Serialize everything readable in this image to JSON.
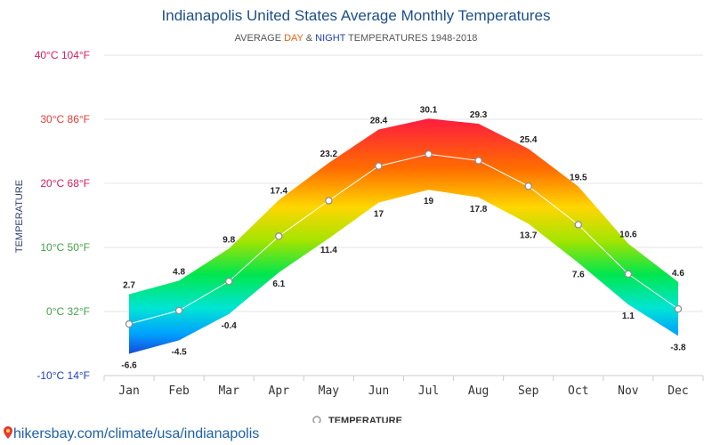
{
  "header": {
    "title": "Indianapolis United States Average Monthly Temperatures",
    "subtitle_prefix": "AVERAGE ",
    "subtitle_day": "DAY",
    "subtitle_amp": " & ",
    "subtitle_night": "NIGHT",
    "subtitle_suffix": " TEMPERATURES 1948-2018"
  },
  "colors": {
    "day": "#e8650a",
    "night": "#1f3fbf",
    "tick_hot": "#d81b60",
    "tick_warm": "#e53935",
    "tick_mild": "#43a047",
    "tick_cold": "#1e3fbf"
  },
  "chart_data": {
    "type": "area",
    "categories": [
      "Jan",
      "Feb",
      "Mar",
      "Apr",
      "May",
      "Jun",
      "Jul",
      "Aug",
      "Sep",
      "Oct",
      "Nov",
      "Dec"
    ],
    "series": [
      {
        "name": "",
        "values": [
          2.7,
          4.8,
          9.8,
          17.4,
          23.2,
          28.4,
          30.1,
          29.3,
          25.4,
          19.5,
          10.6,
          4.6
        ]
      },
      {
        "name": "",
        "values": [
          -6.6,
          -4.5,
          -0.4,
          6.1,
          11.4,
          17,
          19,
          17.8,
          13.7,
          7.6,
          1.1,
          -3.8
        ]
      },
      {
        "name": "TEMPERATURE",
        "values": [
          -1.95,
          0.15,
          4.7,
          11.75,
          17.3,
          22.7,
          24.55,
          23.55,
          19.55,
          13.55,
          5.85,
          0.4
        ]
      }
    ],
    "ylabel": "TEMPERATURE",
    "ylim": [
      -10,
      40
    ],
    "yticks": [
      "-10°C 14°F",
      "0°C 32°F",
      "10°C 50°F",
      "20°C 68°F",
      "30°C 86°F",
      "40°C 104°F"
    ],
    "ytick_values": [
      -10,
      0,
      10,
      20,
      30,
      40
    ],
    "grid": true,
    "legend": "bottom-center"
  },
  "footer": {
    "icon": "map-pin-icon",
    "text": "hikersbay.com/climate/usa/indianapolis"
  }
}
